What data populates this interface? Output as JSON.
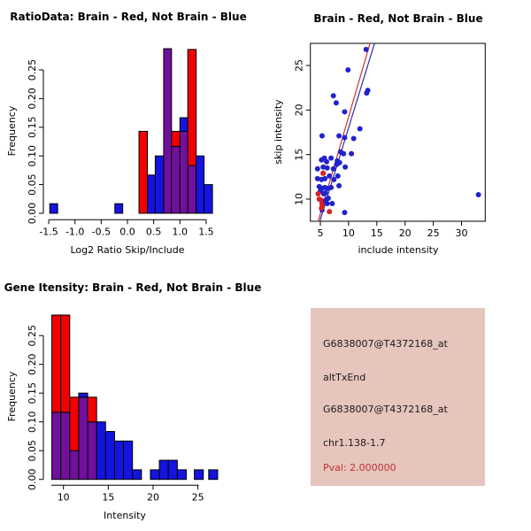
{
  "colors": {
    "hist_red": "#F20000",
    "hist_blue": "#1414E0",
    "hist_overlap_purple": "#70109C",
    "bar_border": "#000000",
    "point_blue": "#2222CC",
    "point_red": "#DD2020",
    "fit_line_red": "#CC3333",
    "fit_line_blue": "#2233AA",
    "axis_black": "#000000",
    "info_box_bg": "#E6C5BD",
    "pval_red": "#C03030",
    "info_text_black": "#1A1A1A"
  },
  "chart_data": [
    {
      "id": "hist_ratio",
      "type": "bar",
      "subtype": "overlaid-histograms",
      "title": "RatioData: Brain - Red, Not Brain - Blue",
      "xlabel": "Log2 Ratio Skip/Include",
      "ylabel": "Frequency",
      "legend_note": "Brain - Red, Not Brain - Blue, overlap shown purple",
      "x_ticks": [
        -1.5,
        -1.0,
        -0.5,
        0.0,
        0.5,
        1.0,
        1.5
      ],
      "x_tick_labels": [
        "-1.5",
        "-1.0",
        "-0.5",
        "0.0",
        "0.5",
        "1.0",
        "1.5"
      ],
      "y_ticks": [
        0,
        0.05,
        0.1,
        0.15,
        0.2,
        0.25
      ],
      "y_tick_labels": [
        "0.00",
        "0.05",
        "0.10",
        "0.15",
        "0.20",
        "0.25"
      ],
      "xlim": [
        -1.6,
        2.0
      ],
      "ylim": [
        0,
        0.29
      ],
      "grid": false,
      "bars": [
        {
          "x0": -1.48,
          "x1": -1.33,
          "red": 0,
          "blue": 0.0167
        },
        {
          "x0": -0.24,
          "x1": -0.09,
          "red": 0,
          "blue": 0.0167
        },
        {
          "x0": 0.22,
          "x1": 0.38,
          "red": 0.1429,
          "blue": 0
        },
        {
          "x0": 0.38,
          "x1": 0.53,
          "red": 0,
          "blue": 0.0667
        },
        {
          "x0": 0.53,
          "x1": 0.69,
          "red": 0,
          "blue": 0.1
        },
        {
          "x0": 0.69,
          "x1": 0.84,
          "red": 0.3,
          "blue": 0.3
        },
        {
          "x0": 0.84,
          "x1": 1.0,
          "red": 0.1429,
          "blue": 0.1167
        },
        {
          "x0": 1.0,
          "x1": 1.15,
          "red": 0.1429,
          "blue": 0.1667
        },
        {
          "x0": 1.15,
          "x1": 1.31,
          "red": 0.2857,
          "blue": 0.0833
        },
        {
          "x0": 1.31,
          "x1": 1.46,
          "red": 0,
          "blue": 0.1
        },
        {
          "x0": 1.46,
          "x1": 1.62,
          "red": 0,
          "blue": 0.05
        }
      ]
    },
    {
      "id": "scatter",
      "type": "scatter",
      "title": "Brain - Red, Not Brain - Blue",
      "xlabel": "include intensity",
      "ylabel": "skip intensity",
      "x_ticks": [
        5,
        10,
        15,
        20,
        25,
        30
      ],
      "x_tick_labels": [
        "5",
        "10",
        "15",
        "20",
        "25",
        "30"
      ],
      "y_ticks": [
        10,
        15,
        20,
        25
      ],
      "y_tick_labels": [
        "10",
        "15",
        "20",
        "25"
      ],
      "xlim": [
        3.2,
        34.2
      ],
      "ylim": [
        7.5,
        27.5
      ],
      "grid": false,
      "points_blue": [
        [
          13.1,
          26.8
        ],
        [
          9.9,
          24.5
        ],
        [
          13.4,
          22.2
        ],
        [
          13.2,
          21.9
        ],
        [
          7.3,
          21.6
        ],
        [
          7.8,
          20.8
        ],
        [
          9.3,
          19.8
        ],
        [
          12.0,
          17.9
        ],
        [
          5.3,
          17.1
        ],
        [
          8.3,
          17.1
        ],
        [
          9.3,
          16.9
        ],
        [
          10.9,
          16.8
        ],
        [
          8.6,
          15.3
        ],
        [
          9.1,
          15.1
        ],
        [
          10.5,
          15.1
        ],
        [
          5.2,
          14.4
        ],
        [
          5.7,
          14.6
        ],
        [
          6.1,
          14.2
        ],
        [
          6.9,
          14.6
        ],
        [
          8.0,
          14.3
        ],
        [
          8.4,
          14.1
        ],
        [
          4.5,
          13.4
        ],
        [
          5.5,
          13.6
        ],
        [
          6.2,
          13.5
        ],
        [
          7.3,
          13.4
        ],
        [
          7.9,
          13.9
        ],
        [
          9.4,
          13.6
        ],
        [
          4.5,
          12.3
        ],
        [
          5.2,
          12.2
        ],
        [
          5.8,
          12.3
        ],
        [
          6.6,
          12.6
        ],
        [
          7.4,
          12.2
        ],
        [
          8.1,
          12.6
        ],
        [
          4.8,
          11.4
        ],
        [
          5.3,
          11.2
        ],
        [
          5.8,
          11.3
        ],
        [
          6.3,
          11.2
        ],
        [
          6.9,
          11.3
        ],
        [
          8.3,
          11.5
        ],
        [
          5.0,
          10.9
        ],
        [
          5.6,
          10.6
        ],
        [
          5.9,
          10.7
        ],
        [
          6.4,
          10.1
        ],
        [
          5.2,
          9.8
        ],
        [
          5.6,
          9.6
        ],
        [
          6.0,
          9.9
        ],
        [
          6.2,
          9.5
        ],
        [
          7.1,
          9.5
        ],
        [
          5.3,
          8.8
        ],
        [
          9.3,
          8.5
        ],
        [
          33.0,
          10.5
        ],
        [
          5.5,
          12.9
        ]
      ],
      "points_red": [
        [
          4.6,
          10.6
        ],
        [
          4.8,
          10.0
        ],
        [
          5.1,
          9.9
        ],
        [
          5.3,
          9.4
        ],
        [
          5.2,
          9.0
        ],
        [
          6.6,
          8.6
        ],
        [
          5.5,
          12.9
        ]
      ],
      "fit_lines": [
        {
          "series": "red",
          "from": [
            4.6,
            7.5
          ],
          "to": [
            13.8,
            27.5
          ]
        },
        {
          "series": "blue",
          "from": [
            4.9,
            7.5
          ],
          "to": [
            14.6,
            27.5
          ]
        }
      ]
    },
    {
      "id": "hist_intensity",
      "type": "bar",
      "subtype": "overlaid-histograms",
      "title": "Gene Itensity: Brain - Red, Not Brain - Blue",
      "xlabel": "Intensity",
      "ylabel": "Frequency",
      "x_ticks": [
        10,
        15,
        20,
        25
      ],
      "x_tick_labels": [
        "10",
        "15",
        "20",
        "25"
      ],
      "y_ticks": [
        0,
        0.05,
        0.1,
        0.15,
        0.2,
        0.25
      ],
      "y_tick_labels": [
        "0.00",
        "0.05",
        "0.10",
        "0.15",
        "0.20",
        "0.25"
      ],
      "xlim": [
        7.8,
        29.1
      ],
      "ylim": [
        0,
        0.29
      ],
      "grid": false,
      "bars": [
        {
          "x0": 8.7,
          "x1": 9.7,
          "red": 0.2857,
          "blue": 0.1167
        },
        {
          "x0": 9.7,
          "x1": 10.7,
          "red": 0.2857,
          "blue": 0.1167
        },
        {
          "x0": 10.7,
          "x1": 11.7,
          "red": 0.1429,
          "blue": 0.05
        },
        {
          "x0": 11.7,
          "x1": 12.7,
          "red": 0.1429,
          "blue": 0.15
        },
        {
          "x0": 12.7,
          "x1": 13.7,
          "red": 0.1429,
          "blue": 0.1
        },
        {
          "x0": 13.7,
          "x1": 14.7,
          "red": 0,
          "blue": 0.1
        },
        {
          "x0": 14.7,
          "x1": 15.7,
          "red": 0,
          "blue": 0.0833
        },
        {
          "x0": 15.7,
          "x1": 16.7,
          "red": 0,
          "blue": 0.0667
        },
        {
          "x0": 16.7,
          "x1": 17.7,
          "red": 0,
          "blue": 0.0667
        },
        {
          "x0": 17.7,
          "x1": 18.7,
          "red": 0,
          "blue": 0.0167
        },
        {
          "x0": 19.7,
          "x1": 20.7,
          "red": 0,
          "blue": 0.0167
        },
        {
          "x0": 20.7,
          "x1": 21.7,
          "red": 0,
          "blue": 0.0333
        },
        {
          "x0": 21.7,
          "x1": 22.7,
          "red": 0,
          "blue": 0.0333
        },
        {
          "x0": 22.7,
          "x1": 23.7,
          "red": 0,
          "blue": 0.0167
        },
        {
          "x0": 24.6,
          "x1": 25.6,
          "red": 0,
          "blue": 0.0167
        },
        {
          "x0": 26.2,
          "x1": 27.2,
          "red": 0,
          "blue": 0.0167
        }
      ]
    },
    {
      "id": "info_box",
      "type": "table",
      "subtype": "text-panel",
      "lines": [
        {
          "text": "G6838007@T4372168_at",
          "color": "#1A1A1A"
        },
        {
          "text": "altTxEnd",
          "color": "#1A1A1A"
        },
        {
          "text": "G6838007@T4372168_at",
          "color": "#1A1A1A"
        },
        {
          "text": "chr1.138-1.7",
          "color": "#1A1A1A"
        },
        {
          "text": "Pval: 2.000000",
          "color": "#C03030"
        }
      ]
    }
  ]
}
